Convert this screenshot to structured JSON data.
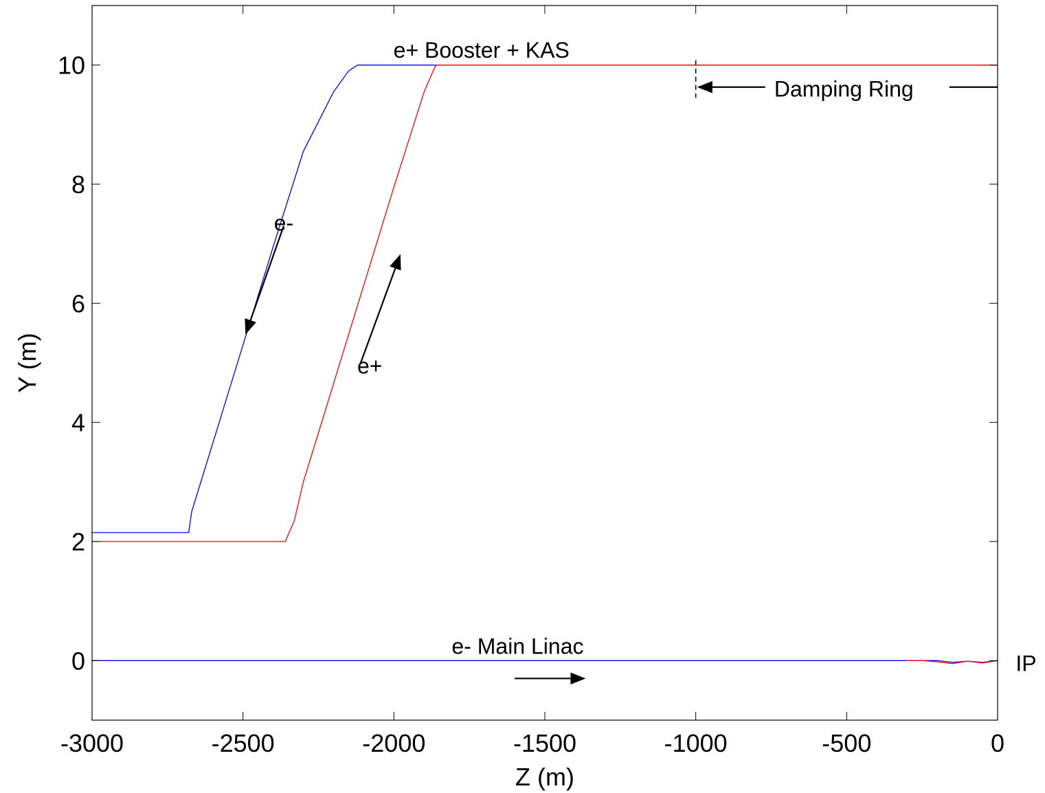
{
  "chart_data": {
    "type": "line",
    "xlabel": "Z (m)",
    "ylabel": "Y (m)",
    "xlim": [
      -3000,
      0
    ],
    "ylim": [
      -1,
      11
    ],
    "x_ticks": [
      -3000,
      -2500,
      -2000,
      -1500,
      -1000,
      -500,
      0
    ],
    "x_tick_labels": [
      "-3000",
      "-2500",
      "-2000",
      "-1500",
      "-1000",
      "-500",
      "0"
    ],
    "y_ticks": [
      0,
      2,
      4,
      6,
      8,
      10
    ],
    "y_tick_labels": [
      "0",
      "2",
      "4",
      "6",
      "8",
      "10"
    ],
    "grid": false,
    "series": [
      {
        "color": "#0000ff",
        "x": [
          -3000,
          -2680,
          -2670,
          -2600,
          -2500,
          -2400,
          -2300,
          -2200,
          -2150,
          -2120,
          -2100,
          -2090,
          -1000,
          0
        ],
        "y": [
          2.15,
          2.15,
          2.5,
          3.65,
          5.3,
          6.95,
          8.55,
          9.55,
          9.9,
          10.0,
          10.0,
          10.0,
          10.0,
          10.0
        ]
      },
      {
        "color": "#ff0000",
        "x": [
          -3000,
          -2360,
          -2330,
          -2300,
          -2200,
          -2100,
          -2000,
          -1900,
          -1870,
          -1860,
          -1000,
          0
        ],
        "y": [
          2.0,
          2.0,
          2.35,
          3.0,
          4.65,
          6.3,
          7.95,
          9.55,
          9.9,
          10.0,
          10.0,
          10.0
        ]
      },
      {
        "color": "#0000ff",
        "x": [
          -3000,
          -300,
          -200,
          -150,
          -100,
          -50,
          0
        ],
        "y": [
          0,
          0,
          0,
          -0.03,
          -0.01,
          -0.03,
          0
        ]
      },
      {
        "color": "#ff0000",
        "x": [
          -300,
          -250,
          -200,
          -150,
          -100,
          -50,
          0
        ],
        "y": [
          0,
          0,
          -0.02,
          -0.05,
          -0.01,
          -0.04,
          0
        ]
      }
    ],
    "annotations": [
      {
        "text": "e+ Booster + KAS",
        "x": -1710,
        "y": 10.25,
        "anchor": "middle"
      },
      {
        "text": "Damping Ring",
        "x": -740,
        "y": 9.6,
        "anchor": "start"
      },
      {
        "text": "e-",
        "x": -2365,
        "y": 7.35,
        "anchor": "middle"
      },
      {
        "text": "e+",
        "x": -2080,
        "y": 4.95,
        "anchor": "middle"
      },
      {
        "text": "e- Main Linac",
        "x": -1590,
        "y": 0.24,
        "anchor": "middle"
      },
      {
        "text": "IP",
        "x": 60,
        "y": -0.05,
        "anchor": "start"
      }
    ],
    "arrows": [
      {
        "from": [
          -2365,
          7.3
        ],
        "to": [
          -2490,
          5.5
        ]
      },
      {
        "from": [
          -2110,
          5.0
        ],
        "to": [
          -1980,
          6.8
        ]
      },
      {
        "from": [
          -1600,
          -0.3
        ],
        "to": [
          -1370,
          -0.3
        ]
      },
      {
        "from": [
          -770,
          9.63
        ],
        "to": [
          -990,
          9.63
        ]
      },
      {
        "from": [
          -160,
          9.63
        ],
        "to": [
          0,
          9.63
        ],
        "head": false
      }
    ],
    "markers": [
      {
        "x": -1000,
        "y0": 9.45,
        "y1": 10.08
      }
    ]
  }
}
